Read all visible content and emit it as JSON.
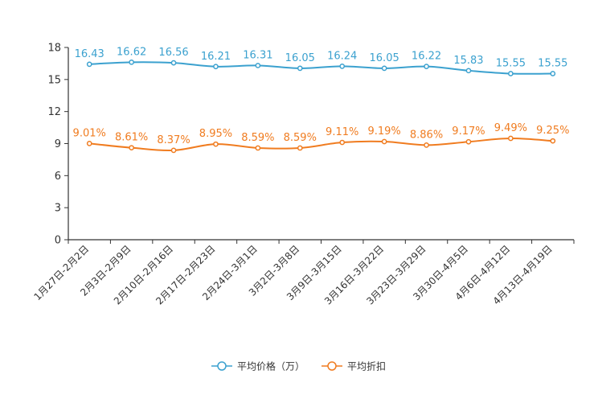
{
  "chart_data": {
    "type": "line",
    "title": "",
    "xlabel": "",
    "ylabel": "",
    "ylim": [
      0,
      18
    ],
    "yticks": [
      "0",
      "3",
      "6",
      "9",
      "12",
      "15",
      "18"
    ],
    "categories": [
      "1月27日-2月2日",
      "2月3日-2月9日",
      "2月10日-2月16日",
      "2月17日-2月23日",
      "2月24日-3月1日",
      "3月2日-3月8日",
      "3月9日-3月15日",
      "3月16日-3月22日",
      "3月23日-3月29日",
      "3月30日-4月5日",
      "4月6日-4月12日",
      "4月13日-4月19日"
    ],
    "series": [
      {
        "name": "平均价格（万）",
        "color": "#3ba1cf",
        "values": [
          16.43,
          16.62,
          16.56,
          16.21,
          16.31,
          16.05,
          16.24,
          16.05,
          16.22,
          15.83,
          15.55,
          15.55
        ],
        "labels": [
          "16.43",
          "16.62",
          "16.56",
          "16.21",
          "16.31",
          "16.05",
          "16.24",
          "16.05",
          "16.22",
          "15.83",
          "15.55",
          "15.55"
        ]
      },
      {
        "name": "平均折扣",
        "color": "#f07c20",
        "values": [
          9.01,
          8.61,
          8.37,
          8.95,
          8.59,
          8.59,
          9.11,
          9.19,
          8.86,
          9.17,
          9.49,
          9.25
        ],
        "labels": [
          "9.01%",
          "8.61%",
          "8.37%",
          "8.95%",
          "8.59%",
          "8.59%",
          "9.11%",
          "9.19%",
          "8.86%",
          "9.17%",
          "9.49%",
          "9.25%"
        ]
      }
    ],
    "legend_position": "bottom-center",
    "grid": false
  }
}
